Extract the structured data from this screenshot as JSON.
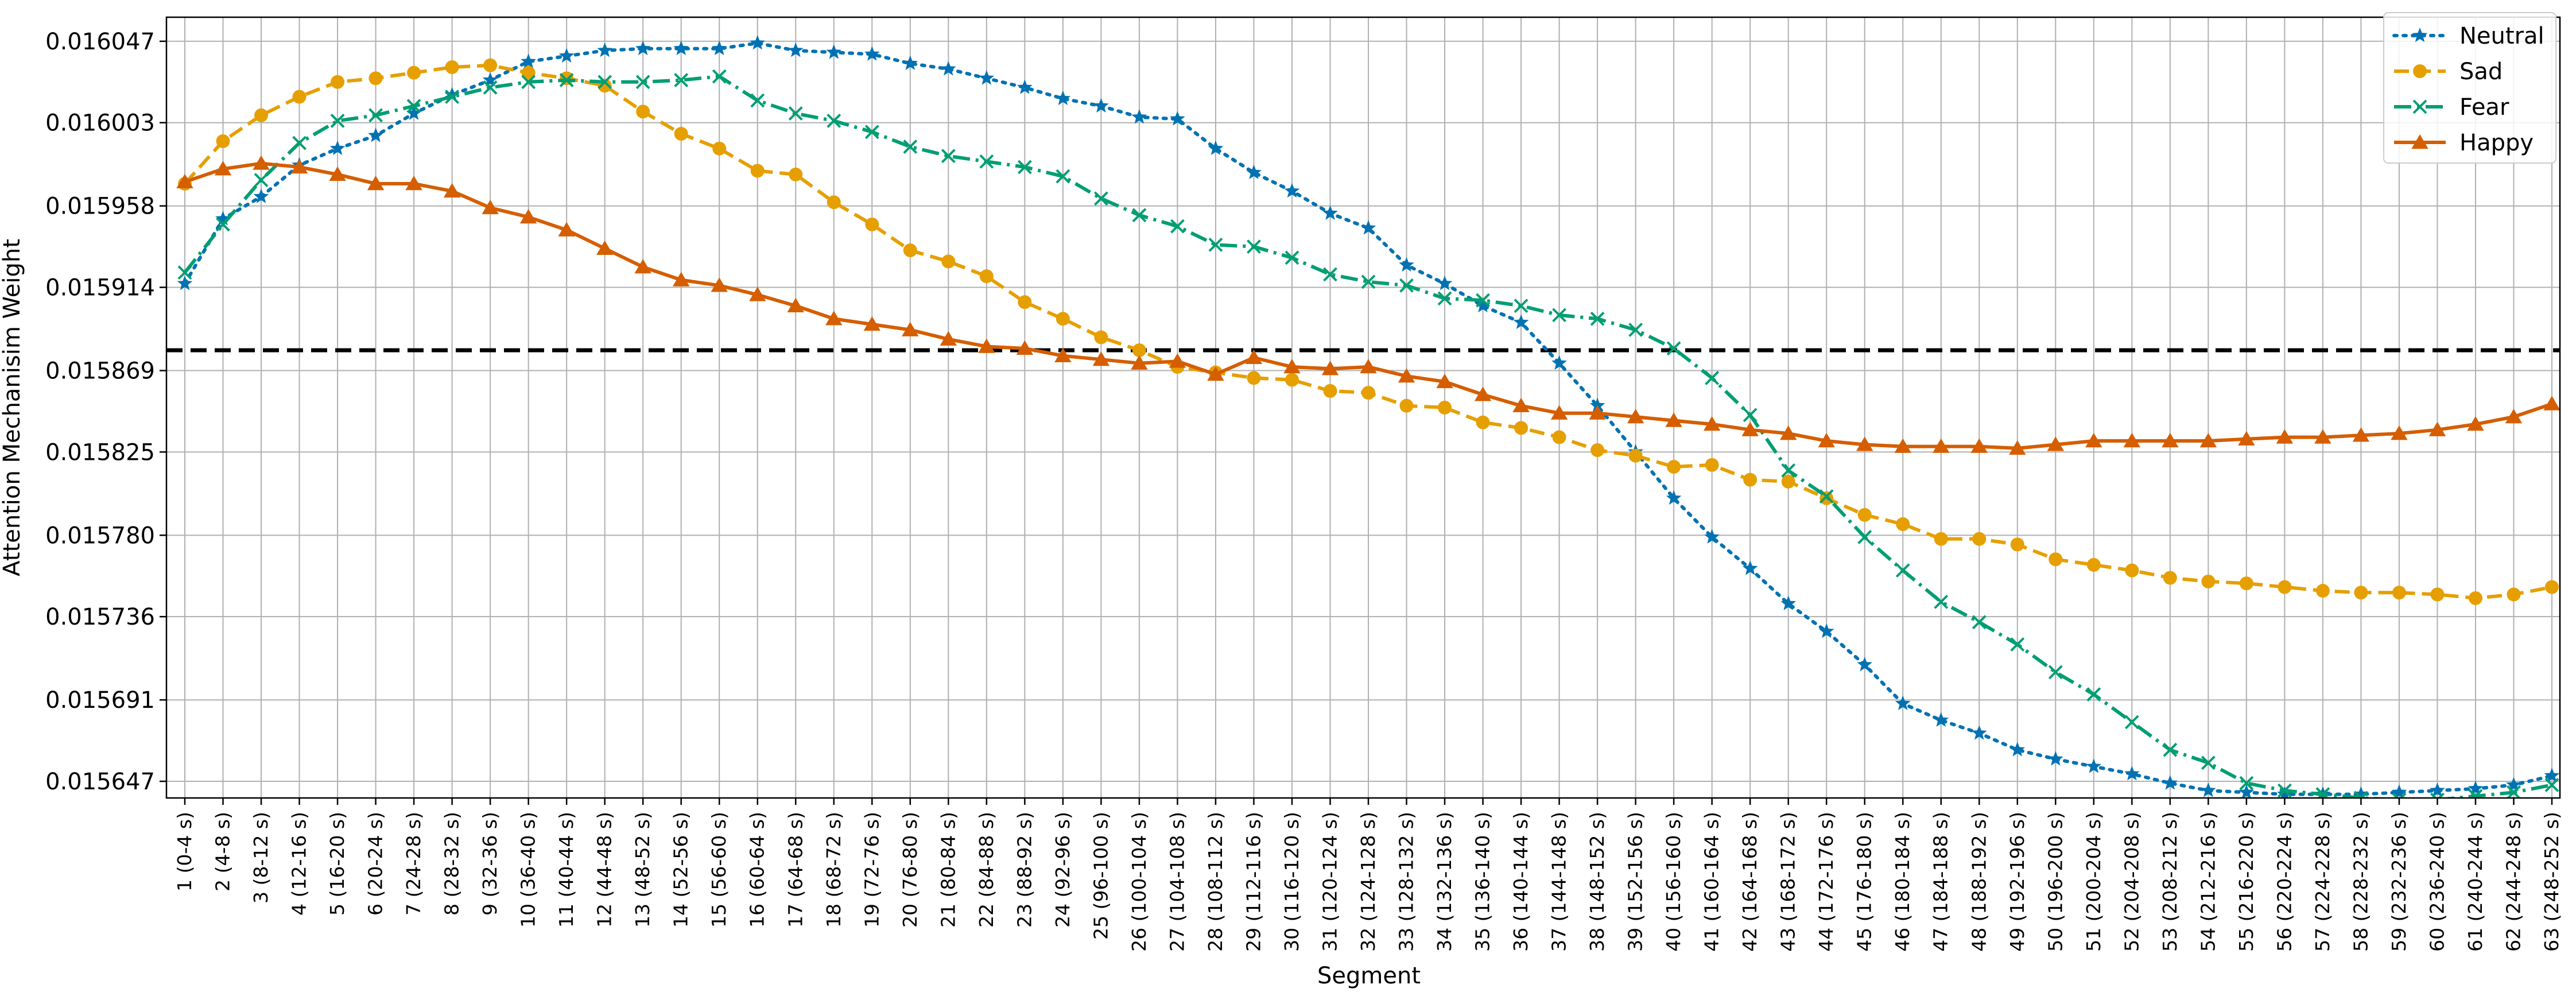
{
  "chart_data": {
    "type": "line",
    "title": "",
    "xlabel": "Segment",
    "ylabel": "Attention Mechanisim Weight",
    "ylim": [
      0.015638,
      0.01606
    ],
    "grid": true,
    "legend_position": "top-right",
    "reference_line": {
      "value": 0.01588,
      "style": "dashed",
      "color": "#000000"
    },
    "yticks": [
      "0.015647",
      "0.015691",
      "0.015736",
      "0.015780",
      "0.015825",
      "0.015869",
      "0.015914",
      "0.015958",
      "0.016003",
      "0.016047"
    ],
    "categories": [
      "1 (0-4 s)",
      "2 (4-8 s)",
      "3 (8-12 s)",
      "4 (12-16 s)",
      "5 (16-20 s)",
      "6 (20-24 s)",
      "7 (24-28 s)",
      "8 (28-32 s)",
      "9 (32-36 s)",
      "10 (36-40 s)",
      "11 (40-44 s)",
      "12 (44-48 s)",
      "13 (48-52 s)",
      "14 (52-56 s)",
      "15 (56-60 s)",
      "16 (60-64 s)",
      "17 (64-68 s)",
      "18 (68-72 s)",
      "19 (72-76 s)",
      "20 (76-80 s)",
      "21 (80-84 s)",
      "22 (84-88 s)",
      "23 (88-92 s)",
      "24 (92-96 s)",
      "25 (96-100 s)",
      "26 (100-104 s)",
      "27 (104-108 s)",
      "28 (108-112 s)",
      "29 (112-116 s)",
      "30 (116-120 s)",
      "31 (120-124 s)",
      "32 (124-128 s)",
      "33 (128-132 s)",
      "34 (132-136 s)",
      "35 (136-140 s)",
      "36 (140-144 s)",
      "37 (144-148 s)",
      "38 (148-152 s)",
      "39 (152-156 s)",
      "40 (156-160 s)",
      "41 (160-164 s)",
      "42 (164-168 s)",
      "43 (168-172 s)",
      "44 (172-176 s)",
      "45 (176-180 s)",
      "46 (180-184 s)",
      "47 (184-188 s)",
      "48 (188-192 s)",
      "49 (192-196 s)",
      "50 (196-200 s)",
      "51 (200-204 s)",
      "52 (204-208 s)",
      "53 (208-212 s)",
      "54 (212-216 s)",
      "55 (216-220 s)",
      "56 (220-224 s)",
      "57 (224-228 s)",
      "58 (228-232 s)",
      "59 (232-236 s)",
      "60 (236-240 s)",
      "61 (240-244 s)",
      "62 (244-248 s)",
      "63 (248-252 s)"
    ],
    "series": [
      {
        "name": "Neutral",
        "color": "#0072B2",
        "dash": "dotted",
        "marker": "star",
        "values": [
          0.015916,
          0.015951,
          0.015963,
          0.01598,
          0.015989,
          0.015996,
          0.016008,
          0.016018,
          0.016026,
          0.016036,
          0.016039,
          0.016042,
          0.016043,
          0.016043,
          0.016043,
          0.016046,
          0.016042,
          0.016041,
          0.01604,
          0.016035,
          0.016032,
          0.016027,
          0.016022,
          0.016016,
          0.016012,
          0.016006,
          0.016005,
          0.015989,
          0.015976,
          0.015966,
          0.015954,
          0.015946,
          0.015926,
          0.015916,
          0.015904,
          0.015895,
          0.015873,
          0.01585,
          0.015825,
          0.0158,
          0.015779,
          0.015762,
          0.015743,
          0.015728,
          0.01571,
          0.015689,
          0.01568,
          0.015673,
          0.015664,
          0.015659,
          0.015655,
          0.015651,
          0.015646,
          0.015642,
          0.015641,
          0.01564,
          0.01564,
          0.01564,
          0.015641,
          0.015642,
          0.015643,
          0.015645,
          0.01565
        ]
      },
      {
        "name": "Sad",
        "color": "#E69F00",
        "dash": "dashed",
        "marker": "circle",
        "values": [
          0.01597,
          0.015993,
          0.016007,
          0.016017,
          0.016025,
          0.016027,
          0.01603,
          0.016033,
          0.016034,
          0.01603,
          0.016027,
          0.016023,
          0.016009,
          0.015997,
          0.015989,
          0.015977,
          0.015975,
          0.01596,
          0.015948,
          0.015934,
          0.015928,
          0.01592,
          0.015906,
          0.015897,
          0.015887,
          0.01588,
          0.015871,
          0.015868,
          0.015865,
          0.015864,
          0.015858,
          0.015857,
          0.01585,
          0.015849,
          0.015841,
          0.015838,
          0.015833,
          0.015826,
          0.015823,
          0.015817,
          0.015818,
          0.01581,
          0.015809,
          0.0158,
          0.015791,
          0.015786,
          0.015778,
          0.015778,
          0.015775,
          0.015767,
          0.015764,
          0.015761,
          0.015757,
          0.015755,
          0.015754,
          0.015752,
          0.01575,
          0.015749,
          0.015749,
          0.015748,
          0.015746,
          0.015748,
          0.015752
        ]
      },
      {
        "name": "Fear",
        "color": "#009E73",
        "dash": "dashdot",
        "marker": "x",
        "values": [
          0.015922,
          0.015948,
          0.015972,
          0.015992,
          0.016004,
          0.016007,
          0.016012,
          0.016017,
          0.016022,
          0.016025,
          0.016026,
          0.016025,
          0.016025,
          0.016026,
          0.016028,
          0.016015,
          0.016008,
          0.016004,
          0.015998,
          0.01599,
          0.015985,
          0.015982,
          0.015979,
          0.015974,
          0.015962,
          0.015953,
          0.015947,
          0.015937,
          0.015936,
          0.01593,
          0.015921,
          0.015917,
          0.015915,
          0.015908,
          0.015907,
          0.015904,
          0.015899,
          0.015897,
          0.015891,
          0.015881,
          0.015865,
          0.015845,
          0.015815,
          0.015801,
          0.015779,
          0.015761,
          0.015744,
          0.015733,
          0.015721,
          0.015706,
          0.015694,
          0.015679,
          0.015664,
          0.015657,
          0.015646,
          0.015642,
          0.01564,
          0.015638,
          0.015637,
          0.015637,
          0.015639,
          0.015641,
          0.015645
        ]
      },
      {
        "name": "Happy",
        "color": "#D55E00",
        "dash": "solid",
        "marker": "triangle",
        "values": [
          0.015971,
          0.015978,
          0.015981,
          0.015979,
          0.015975,
          0.01597,
          0.01597,
          0.015966,
          0.015957,
          0.015952,
          0.015945,
          0.015935,
          0.015925,
          0.015918,
          0.015915,
          0.01591,
          0.015904,
          0.015897,
          0.015894,
          0.015891,
          0.015886,
          0.015882,
          0.015881,
          0.015877,
          0.015875,
          0.015873,
          0.015874,
          0.015867,
          0.015876,
          0.015871,
          0.01587,
          0.015871,
          0.015866,
          0.015863,
          0.015856,
          0.01585,
          0.015846,
          0.015846,
          0.015844,
          0.015842,
          0.01584,
          0.015837,
          0.015835,
          0.015831,
          0.015829,
          0.015828,
          0.015828,
          0.015828,
          0.015827,
          0.015829,
          0.015831,
          0.015831,
          0.015831,
          0.015831,
          0.015832,
          0.015833,
          0.015833,
          0.015834,
          0.015835,
          0.015837,
          0.01584,
          0.015844,
          0.015851
        ]
      }
    ]
  }
}
